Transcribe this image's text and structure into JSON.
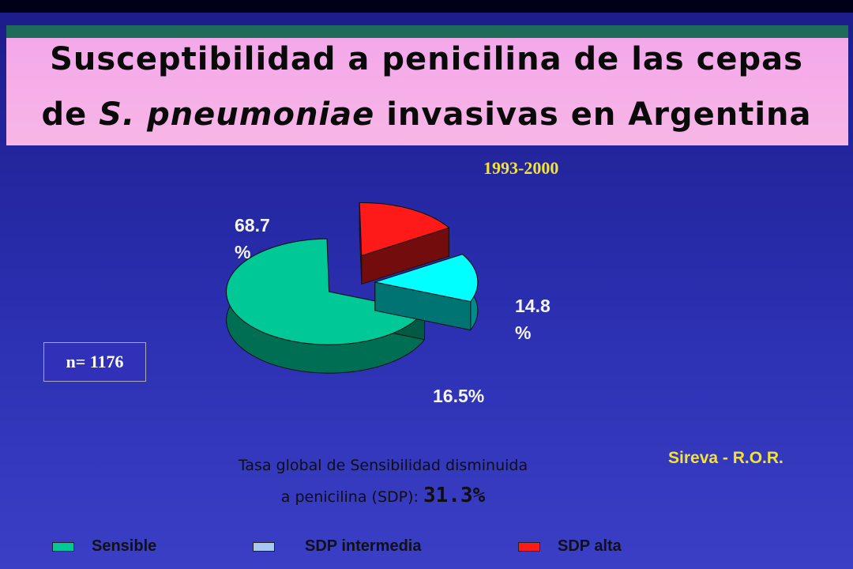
{
  "title": {
    "line1": "Susceptibilidad a penicilina de las cepas",
    "line2_prefix": "de ",
    "line2_species": "S. pneumoniae",
    "line2_suffix": " invasivas en Argentina"
  },
  "period": "1993-2000",
  "sample_size": "n= 1176",
  "source": "Sireva - R.O.R.",
  "note": {
    "line1": "Tasa global de Sensibilidad disminuida",
    "line2_prefix": "a penicilina (SDP): ",
    "line2_value": "31.3%"
  },
  "labels": {
    "sensible_l1": "68.7",
    "sensible_l2": "%",
    "intermedia_l1": "14.8",
    "intermedia_l2": "%",
    "alta": "16.5%"
  },
  "legend": {
    "sensible": "Sensible",
    "intermedia": "SDP  intermedia",
    "alta": "SDP alta"
  },
  "chart_data": {
    "type": "pie",
    "style": "3d-exploded",
    "series": [
      {
        "name": "Sensible",
        "value": 68.7,
        "color": "#00c896",
        "legend_color": "#00c896"
      },
      {
        "name": "SDP  intermedia",
        "value": 14.8,
        "color": "#00ffff",
        "legend_color": "#a8c8f0"
      },
      {
        "name": "SDP alta",
        "value": 16.5,
        "color": "#ff1a1a",
        "legend_color": "#ff1a1a"
      }
    ]
  },
  "colors": {
    "title_band": "#f4a8ea",
    "title_top_stripe": "#1f6b5a",
    "background": "#2b2fb0",
    "accent_yellow": "#f2e23a"
  }
}
